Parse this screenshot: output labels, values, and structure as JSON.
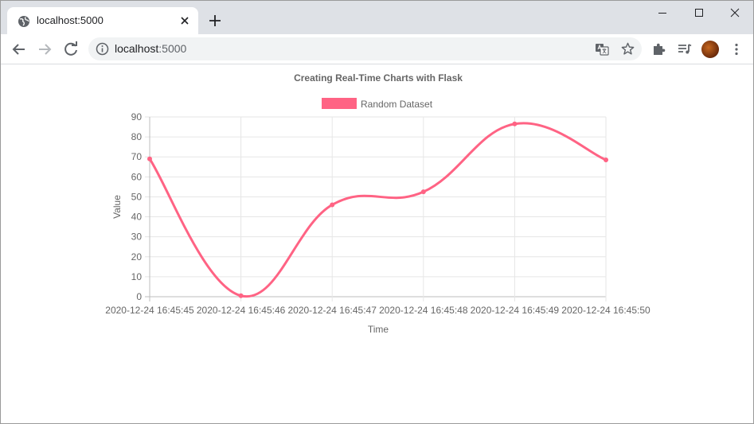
{
  "browser": {
    "tab_title": "localhost:5000",
    "url_host": "localhost",
    "url_port": ":5000"
  },
  "colors": {
    "series": "#ff6384",
    "grid": "#e6e6e6",
    "text": "#666666"
  },
  "icons": {
    "tab": "globe-icon",
    "close": "close-icon",
    "new_tab": "plus-icon",
    "back": "arrow-left-icon",
    "forward": "arrow-right-icon",
    "reload": "reload-icon",
    "site_info": "info-icon",
    "translate": "translate-icon",
    "bookmark": "star-icon",
    "extensions": "puzzle-icon",
    "media": "media-queue-icon",
    "profile": "avatar",
    "menu": "kebab-menu-icon"
  },
  "chart_data": {
    "type": "line",
    "title": "Creating Real-Time Charts with Flask",
    "xlabel": "Time",
    "ylabel": "Value",
    "ylim": [
      0,
      90
    ],
    "yticks": [
      0,
      10,
      20,
      30,
      40,
      50,
      60,
      70,
      80,
      90
    ],
    "grid": true,
    "legend_position": "top",
    "categories": [
      "2020-12-24 16:45:45",
      "2020-12-24 16:45:46",
      "2020-12-24 16:45:47",
      "2020-12-24 16:45:48",
      "2020-12-24 16:45:49",
      "2020-12-24 16:45:50"
    ],
    "series": [
      {
        "name": "Random Dataset",
        "values": [
          69,
          0.5,
          46,
          52.5,
          86.5,
          68.5
        ]
      }
    ]
  }
}
